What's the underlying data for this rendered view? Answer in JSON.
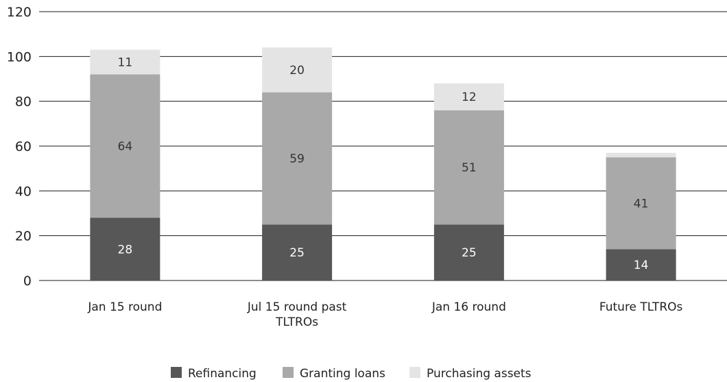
{
  "chart_data": {
    "type": "bar",
    "stacked": true,
    "categories": [
      [
        "Jan 15 round"
      ],
      [
        "Jul 15 round past",
        "TLTROs"
      ],
      [
        "Jan 16 round"
      ],
      [
        "Future TLTROs"
      ]
    ],
    "series": [
      {
        "name": "Refinancing",
        "values": [
          28,
          25,
          25,
          14
        ],
        "color": "#575757",
        "label_color": "#ffffff"
      },
      {
        "name": "Granting loans",
        "values": [
          64,
          59,
          51,
          41
        ],
        "color": "#a9a9a9",
        "label_color": "#333333"
      },
      {
        "name": "Purchasing assets",
        "values": [
          11,
          20,
          12,
          2
        ],
        "color": "#e4e4e4",
        "label_color": "#333333",
        "labels": [
          "11",
          "20",
          "12",
          ""
        ]
      }
    ],
    "ylim": [
      0,
      120
    ],
    "yticks": [
      0,
      20,
      40,
      60,
      80,
      100,
      120
    ],
    "grid": true,
    "legend_position": "bottom",
    "title": "",
    "xlabel": "",
    "ylabel": ""
  }
}
